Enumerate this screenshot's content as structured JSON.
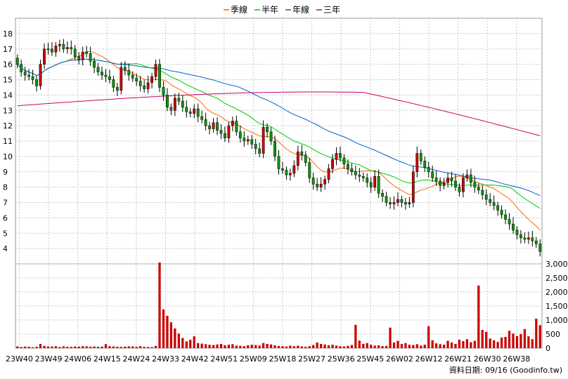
{
  "chart_data": {
    "type": "candlestick",
    "legend": [
      {
        "name": "季線",
        "color": "#ff6600"
      },
      {
        "name": "半年",
        "color": "#00cc00"
      },
      {
        "name": "年線",
        "color": "#0066cc"
      },
      {
        "name": "三年",
        "color": "#cc0066"
      }
    ],
    "price_axis": {
      "min": 3,
      "max": 19,
      "ticks": [
        4,
        5,
        6,
        7,
        8,
        9,
        10,
        11,
        12,
        13,
        14,
        15,
        16,
        17,
        18
      ]
    },
    "volume_axis": {
      "min": 0,
      "max": 3000,
      "ticks": [
        "0",
        "500",
        "1,000",
        "1,500",
        "2,000",
        "2,500",
        "3,000"
      ]
    },
    "x_labels": [
      "23W40",
      "23W49",
      "24W06",
      "24W15",
      "24W24",
      "24W33",
      "24W42",
      "24W51",
      "25W09",
      "25W18",
      "25W27",
      "25W36",
      "25W45",
      "26W02",
      "26W12",
      "26W21",
      "26W30",
      "26W38"
    ],
    "colors": {
      "up": "#cc0000",
      "down": "#009900",
      "volume": "#cc0000"
    },
    "close": [
      16.0,
      15.5,
      15.3,
      15.2,
      15.0,
      14.6,
      16.0,
      17.0,
      17.0,
      16.8,
      17.2,
      17.3,
      17.0,
      17.1,
      17.0,
      16.5,
      16.3,
      16.8,
      16.7,
      16.2,
      15.8,
      15.5,
      15.3,
      15.2,
      15.0,
      14.5,
      14.3,
      15.8,
      15.6,
      15.3,
      15.1,
      14.9,
      14.6,
      14.4,
      14.8,
      15.2,
      16.0,
      14.5,
      14.0,
      13.2,
      13.0,
      13.8,
      13.6,
      13.2,
      12.9,
      12.8,
      13.1,
      12.6,
      12.4,
      12.0,
      11.8,
      12.2,
      11.7,
      11.5,
      11.2,
      12.0,
      12.3,
      11.6,
      11.2,
      11.0,
      11.1,
      10.8,
      10.5,
      10.2,
      11.9,
      11.6,
      11.0,
      10.0,
      9.2,
      9.1,
      8.8,
      8.9,
      9.4,
      10.3,
      10.1,
      9.6,
      8.6,
      8.2,
      8.0,
      8.2,
      8.5,
      9.2,
      9.8,
      10.2,
      9.9,
      9.5,
      9.2,
      9.0,
      8.8,
      8.7,
      8.6,
      8.3,
      8.0,
      8.7,
      7.6,
      7.4,
      7.0,
      6.9,
      7.0,
      7.2,
      7.0,
      6.9,
      7.0,
      9.0,
      10.2,
      9.7,
      9.3,
      9.0,
      8.6,
      8.4,
      8.1,
      8.3,
      8.6,
      8.4,
      8.0,
      7.7,
      8.6,
      8.8,
      8.3,
      8.0,
      7.8,
      7.5,
      7.2,
      7.0,
      6.8,
      6.5,
      6.2,
      5.9,
      5.6,
      5.2,
      4.9,
      4.7,
      4.6,
      4.7,
      4.5,
      4.3,
      3.8
    ],
    "volume": [
      60,
      40,
      55,
      50,
      30,
      45,
      150,
      80,
      60,
      55,
      70,
      40,
      65,
      50,
      45,
      60,
      55,
      70,
      65,
      50,
      60,
      45,
      55,
      140,
      70,
      60,
      50,
      45,
      55,
      65,
      60,
      50,
      70,
      45,
      40,
      35,
      80,
      3050,
      1380,
      1150,
      920,
      700,
      520,
      360,
      240,
      300,
      420,
      180,
      160,
      140,
      120,
      110,
      130,
      150,
      100,
      120,
      140,
      90,
      80,
      70,
      100,
      120,
      110,
      90,
      180,
      150,
      130,
      100,
      80,
      70,
      60,
      90,
      70,
      85,
      60,
      50,
      70,
      110,
      200,
      150,
      130,
      100,
      120,
      90,
      70,
      60,
      80,
      110,
      830,
      270,
      150,
      180,
      120,
      90,
      100,
      70,
      80,
      730,
      200,
      260,
      150,
      180,
      120,
      110,
      140,
      90,
      120,
      780,
      280,
      170,
      140,
      120,
      260,
      200,
      150,
      300,
      250,
      320,
      210,
      260,
      2230,
      650,
      580,
      340,
      280,
      220,
      380,
      400,
      620,
      520,
      430,
      500,
      680,
      420,
      320,
      1050,
      820
    ]
  }
}
